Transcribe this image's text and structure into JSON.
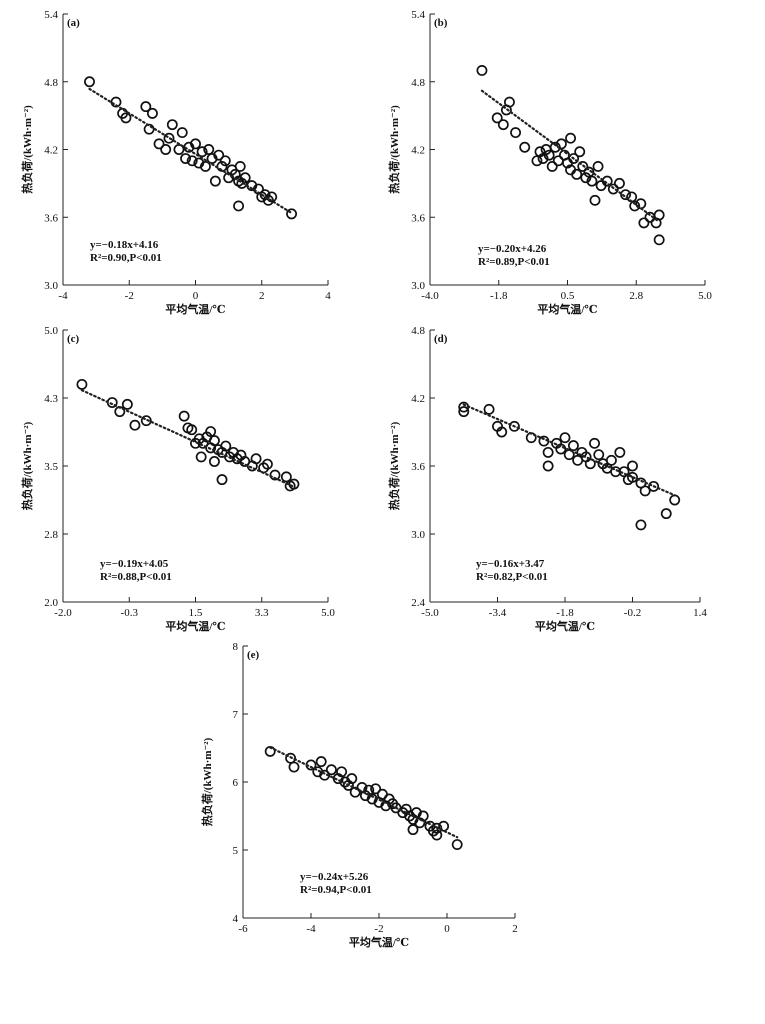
{
  "chart_data": [
    {
      "type": "scatter",
      "panel": "(a)",
      "xlabel": "平均气温/℃",
      "ylabel": "热负荷/(kWh·m⁻²)",
      "xlim": [
        -4,
        4
      ],
      "ylim": [
        3.0,
        5.4
      ],
      "xticks": [
        "-4",
        "-2",
        "0",
        "2",
        "4"
      ],
      "yticks": [
        "3.0",
        "3.6",
        "4.2",
        "4.8",
        "5.4"
      ],
      "fit": {
        "slope": -0.18,
        "intercept": 4.16
      },
      "equation": "y=−0.18x+4.16",
      "stats": "R²=0.90,P<0.01",
      "points": [
        [
          -3.2,
          4.8
        ],
        [
          -2.4,
          4.62
        ],
        [
          -2.2,
          4.52
        ],
        [
          -2.1,
          4.48
        ],
        [
          -1.5,
          4.58
        ],
        [
          -1.3,
          4.52
        ],
        [
          -1.4,
          4.38
        ],
        [
          -1.1,
          4.25
        ],
        [
          -0.9,
          4.2
        ],
        [
          -0.8,
          4.3
        ],
        [
          -0.7,
          4.42
        ],
        [
          -0.5,
          4.2
        ],
        [
          -0.4,
          4.35
        ],
        [
          -0.3,
          4.12
        ],
        [
          -0.2,
          4.22
        ],
        [
          -0.1,
          4.1
        ],
        [
          0.0,
          4.25
        ],
        [
          0.1,
          4.08
        ],
        [
          0.2,
          4.18
        ],
        [
          0.3,
          4.05
        ],
        [
          0.4,
          4.2
        ],
        [
          0.5,
          4.12
        ],
        [
          0.6,
          3.92
        ],
        [
          0.7,
          4.15
        ],
        [
          0.8,
          4.05
        ],
        [
          0.9,
          4.1
        ],
        [
          1.0,
          3.95
        ],
        [
          1.1,
          4.02
        ],
        [
          1.2,
          3.98
        ],
        [
          1.3,
          3.92
        ],
        [
          1.35,
          4.05
        ],
        [
          1.4,
          3.9
        ],
        [
          1.5,
          3.95
        ],
        [
          1.3,
          3.7
        ],
        [
          1.7,
          3.88
        ],
        [
          1.9,
          3.85
        ],
        [
          2.0,
          3.78
        ],
        [
          2.1,
          3.8
        ],
        [
          2.2,
          3.75
        ],
        [
          2.3,
          3.78
        ],
        [
          2.9,
          3.63
        ]
      ]
    },
    {
      "type": "scatter",
      "panel": "(b)",
      "xlabel": "平均气温/℃",
      "ylabel": "热负荷/(kWh·m⁻²)",
      "xlim": [
        -4.0,
        5.0
      ],
      "ylim": [
        3.0,
        5.4
      ],
      "xticks": [
        "-4.0",
        "-1.8",
        "0.5",
        "2.8",
        "5.0"
      ],
      "yticks": [
        "3.0",
        "3.6",
        "4.2",
        "4.8",
        "5.4"
      ],
      "fit": {
        "slope": -0.2,
        "intercept": 4.26
      },
      "equation": "y=−0.20x+4.26",
      "stats": "R²=0.89,P<0.01",
      "points": [
        [
          -2.3,
          4.9
        ],
        [
          -1.4,
          4.62
        ],
        [
          -1.5,
          4.55
        ],
        [
          -1.6,
          4.42
        ],
        [
          -1.8,
          4.48
        ],
        [
          -1.2,
          4.35
        ],
        [
          -0.9,
          4.22
        ],
        [
          -0.5,
          4.1
        ],
        [
          -0.4,
          4.18
        ],
        [
          -0.3,
          4.12
        ],
        [
          -0.2,
          4.2
        ],
        [
          -0.1,
          4.15
        ],
        [
          0.0,
          4.05
        ],
        [
          0.1,
          4.22
        ],
        [
          0.2,
          4.1
        ],
        [
          0.3,
          4.25
        ],
        [
          0.4,
          4.15
        ],
        [
          0.5,
          4.08
        ],
        [
          0.6,
          4.02
        ],
        [
          0.7,
          4.12
        ],
        [
          0.8,
          3.98
        ],
        [
          0.9,
          4.18
        ],
        [
          1.0,
          4.05
        ],
        [
          1.1,
          3.95
        ],
        [
          1.2,
          4.0
        ],
        [
          1.3,
          3.92
        ],
        [
          1.5,
          4.05
        ],
        [
          1.6,
          3.88
        ],
        [
          1.4,
          3.75
        ],
        [
          1.8,
          3.92
        ],
        [
          2.0,
          3.85
        ],
        [
          2.2,
          3.9
        ],
        [
          2.4,
          3.8
        ],
        [
          2.6,
          3.78
        ],
        [
          2.7,
          3.7
        ],
        [
          2.9,
          3.72
        ],
        [
          3.0,
          3.55
        ],
        [
          3.2,
          3.6
        ],
        [
          3.4,
          3.55
        ],
        [
          3.5,
          3.62
        ],
        [
          3.5,
          3.4
        ],
        [
          0.6,
          4.3
        ]
      ]
    },
    {
      "type": "scatter",
      "panel": "(c)",
      "xlabel": "平均气温/℃",
      "ylabel": "热负荷/(kWh·m⁻²)",
      "xlim": [
        -2.0,
        5.0
      ],
      "ylim": [
        2.0,
        5.0
      ],
      "xticks": [
        "-2.0",
        "-0.3",
        "1.5",
        "3.3",
        "5.0"
      ],
      "yticks": [
        "2.0",
        "2.8",
        "3.5",
        "4.3",
        "5.0"
      ],
      "fit": {
        "slope": -0.19,
        "intercept": 4.05
      },
      "equation": "y=−0.19x+4.05",
      "stats": "R²=0.88,P<0.01",
      "points": [
        [
          -1.5,
          4.4
        ],
        [
          -0.7,
          4.2
        ],
        [
          -0.5,
          4.1
        ],
        [
          -0.3,
          4.18
        ],
        [
          -0.1,
          3.95
        ],
        [
          0.2,
          4.0
        ],
        [
          1.2,
          4.05
        ],
        [
          1.3,
          3.92
        ],
        [
          1.4,
          3.9
        ],
        [
          1.5,
          3.75
        ],
        [
          1.6,
          3.8
        ],
        [
          1.65,
          3.6
        ],
        [
          1.7,
          3.75
        ],
        [
          1.8,
          3.82
        ],
        [
          1.9,
          3.7
        ],
        [
          2.0,
          3.78
        ],
        [
          2.0,
          3.55
        ],
        [
          2.1,
          3.68
        ],
        [
          2.2,
          3.65
        ],
        [
          2.3,
          3.72
        ],
        [
          2.4,
          3.6
        ],
        [
          2.5,
          3.65
        ],
        [
          2.6,
          3.58
        ],
        [
          2.7,
          3.62
        ],
        [
          2.8,
          3.55
        ],
        [
          3.0,
          3.5
        ],
        [
          3.1,
          3.58
        ],
        [
          3.3,
          3.48
        ],
        [
          3.4,
          3.52
        ],
        [
          3.6,
          3.4
        ],
        [
          3.9,
          3.38
        ],
        [
          4.0,
          3.28
        ],
        [
          4.1,
          3.3
        ],
        [
          2.2,
          3.35
        ],
        [
          1.9,
          3.88
        ]
      ]
    },
    {
      "type": "scatter",
      "panel": "(d)",
      "xlabel": "平均气温/℃",
      "ylabel": "热负荷/(kWh·m⁻²)",
      "xlim": [
        -5.0,
        1.4
      ],
      "ylim": [
        2.4,
        4.8
      ],
      "xticks": [
        "-5.0",
        "-3.4",
        "-1.8",
        "-0.2",
        "1.4"
      ],
      "yticks": [
        "2.4",
        "3.0",
        "3.6",
        "4.2",
        "4.8"
      ],
      "fit": {
        "slope": -0.16,
        "intercept": 3.47
      },
      "equation": "y=−0.16x+3.47",
      "stats": "R²=0.82,P<0.01",
      "points": [
        [
          -4.2,
          4.12
        ],
        [
          -4.2,
          4.08
        ],
        [
          -3.6,
          4.1
        ],
        [
          -3.4,
          3.95
        ],
        [
          -3.3,
          3.9
        ],
        [
          -3.0,
          3.95
        ],
        [
          -2.6,
          3.85
        ],
        [
          -2.3,
          3.82
        ],
        [
          -2.2,
          3.72
        ],
        [
          -2.0,
          3.8
        ],
        [
          -1.9,
          3.75
        ],
        [
          -1.8,
          3.85
        ],
        [
          -1.7,
          3.7
        ],
        [
          -1.6,
          3.78
        ],
        [
          -1.5,
          3.65
        ],
        [
          -1.4,
          3.72
        ],
        [
          -1.3,
          3.68
        ],
        [
          -1.2,
          3.62
        ],
        [
          -1.0,
          3.7
        ],
        [
          -0.9,
          3.62
        ],
        [
          -0.8,
          3.58
        ],
        [
          -0.7,
          3.65
        ],
        [
          -0.6,
          3.55
        ],
        [
          -0.5,
          3.72
        ],
        [
          -0.4,
          3.55
        ],
        [
          -0.3,
          3.48
        ],
        [
          -0.2,
          3.5
        ],
        [
          -0.2,
          3.6
        ],
        [
          0.0,
          3.45
        ],
        [
          0.1,
          3.38
        ],
        [
          0.3,
          3.42
        ],
        [
          0.0,
          3.08
        ],
        [
          0.8,
          3.3
        ],
        [
          0.6,
          3.18
        ],
        [
          -2.2,
          3.6
        ],
        [
          -1.1,
          3.8
        ]
      ]
    },
    {
      "type": "scatter",
      "panel": "(e)",
      "xlabel": "平均气温/℃",
      "ylabel": "热负荷/(kWh·m⁻²)",
      "xlim": [
        -6,
        2
      ],
      "ylim": [
        4,
        8
      ],
      "xticks": [
        "-6",
        "-4",
        "-2",
        "0",
        "2"
      ],
      "yticks": [
        "4",
        "5",
        "6",
        "7",
        "8"
      ],
      "fit": {
        "slope": -0.24,
        "intercept": 5.26
      },
      "equation": "y=−0.24x+5.26",
      "stats": "R²=0.94,P<0.01",
      "points": [
        [
          -5.2,
          6.45
        ],
        [
          -4.6,
          6.35
        ],
        [
          -4.5,
          6.22
        ],
        [
          -4.0,
          6.25
        ],
        [
          -3.8,
          6.15
        ],
        [
          -3.7,
          6.3
        ],
        [
          -3.6,
          6.1
        ],
        [
          -3.4,
          6.18
        ],
        [
          -3.2,
          6.05
        ],
        [
          -3.1,
          6.15
        ],
        [
          -3.0,
          6.0
        ],
        [
          -2.9,
          5.95
        ],
        [
          -2.8,
          6.05
        ],
        [
          -2.7,
          5.85
        ],
        [
          -2.5,
          5.92
        ],
        [
          -2.4,
          5.8
        ],
        [
          -2.3,
          5.88
        ],
        [
          -2.2,
          5.75
        ],
        [
          -2.1,
          5.9
        ],
        [
          -2.0,
          5.7
        ],
        [
          -1.9,
          5.82
        ],
        [
          -1.8,
          5.65
        ],
        [
          -1.7,
          5.75
        ],
        [
          -1.6,
          5.68
        ],
        [
          -1.5,
          5.62
        ],
        [
          -1.3,
          5.55
        ],
        [
          -1.2,
          5.6
        ],
        [
          -1.1,
          5.5
        ],
        [
          -1.0,
          5.45
        ],
        [
          -0.9,
          5.55
        ],
        [
          -0.8,
          5.4
        ],
        [
          -0.7,
          5.5
        ],
        [
          -0.5,
          5.35
        ],
        [
          -0.4,
          5.28
        ],
        [
          -0.3,
          5.32
        ],
        [
          -0.1,
          5.35
        ],
        [
          0.3,
          5.08
        ],
        [
          -1.0,
          5.3
        ],
        [
          -0.3,
          5.22
        ]
      ]
    }
  ]
}
